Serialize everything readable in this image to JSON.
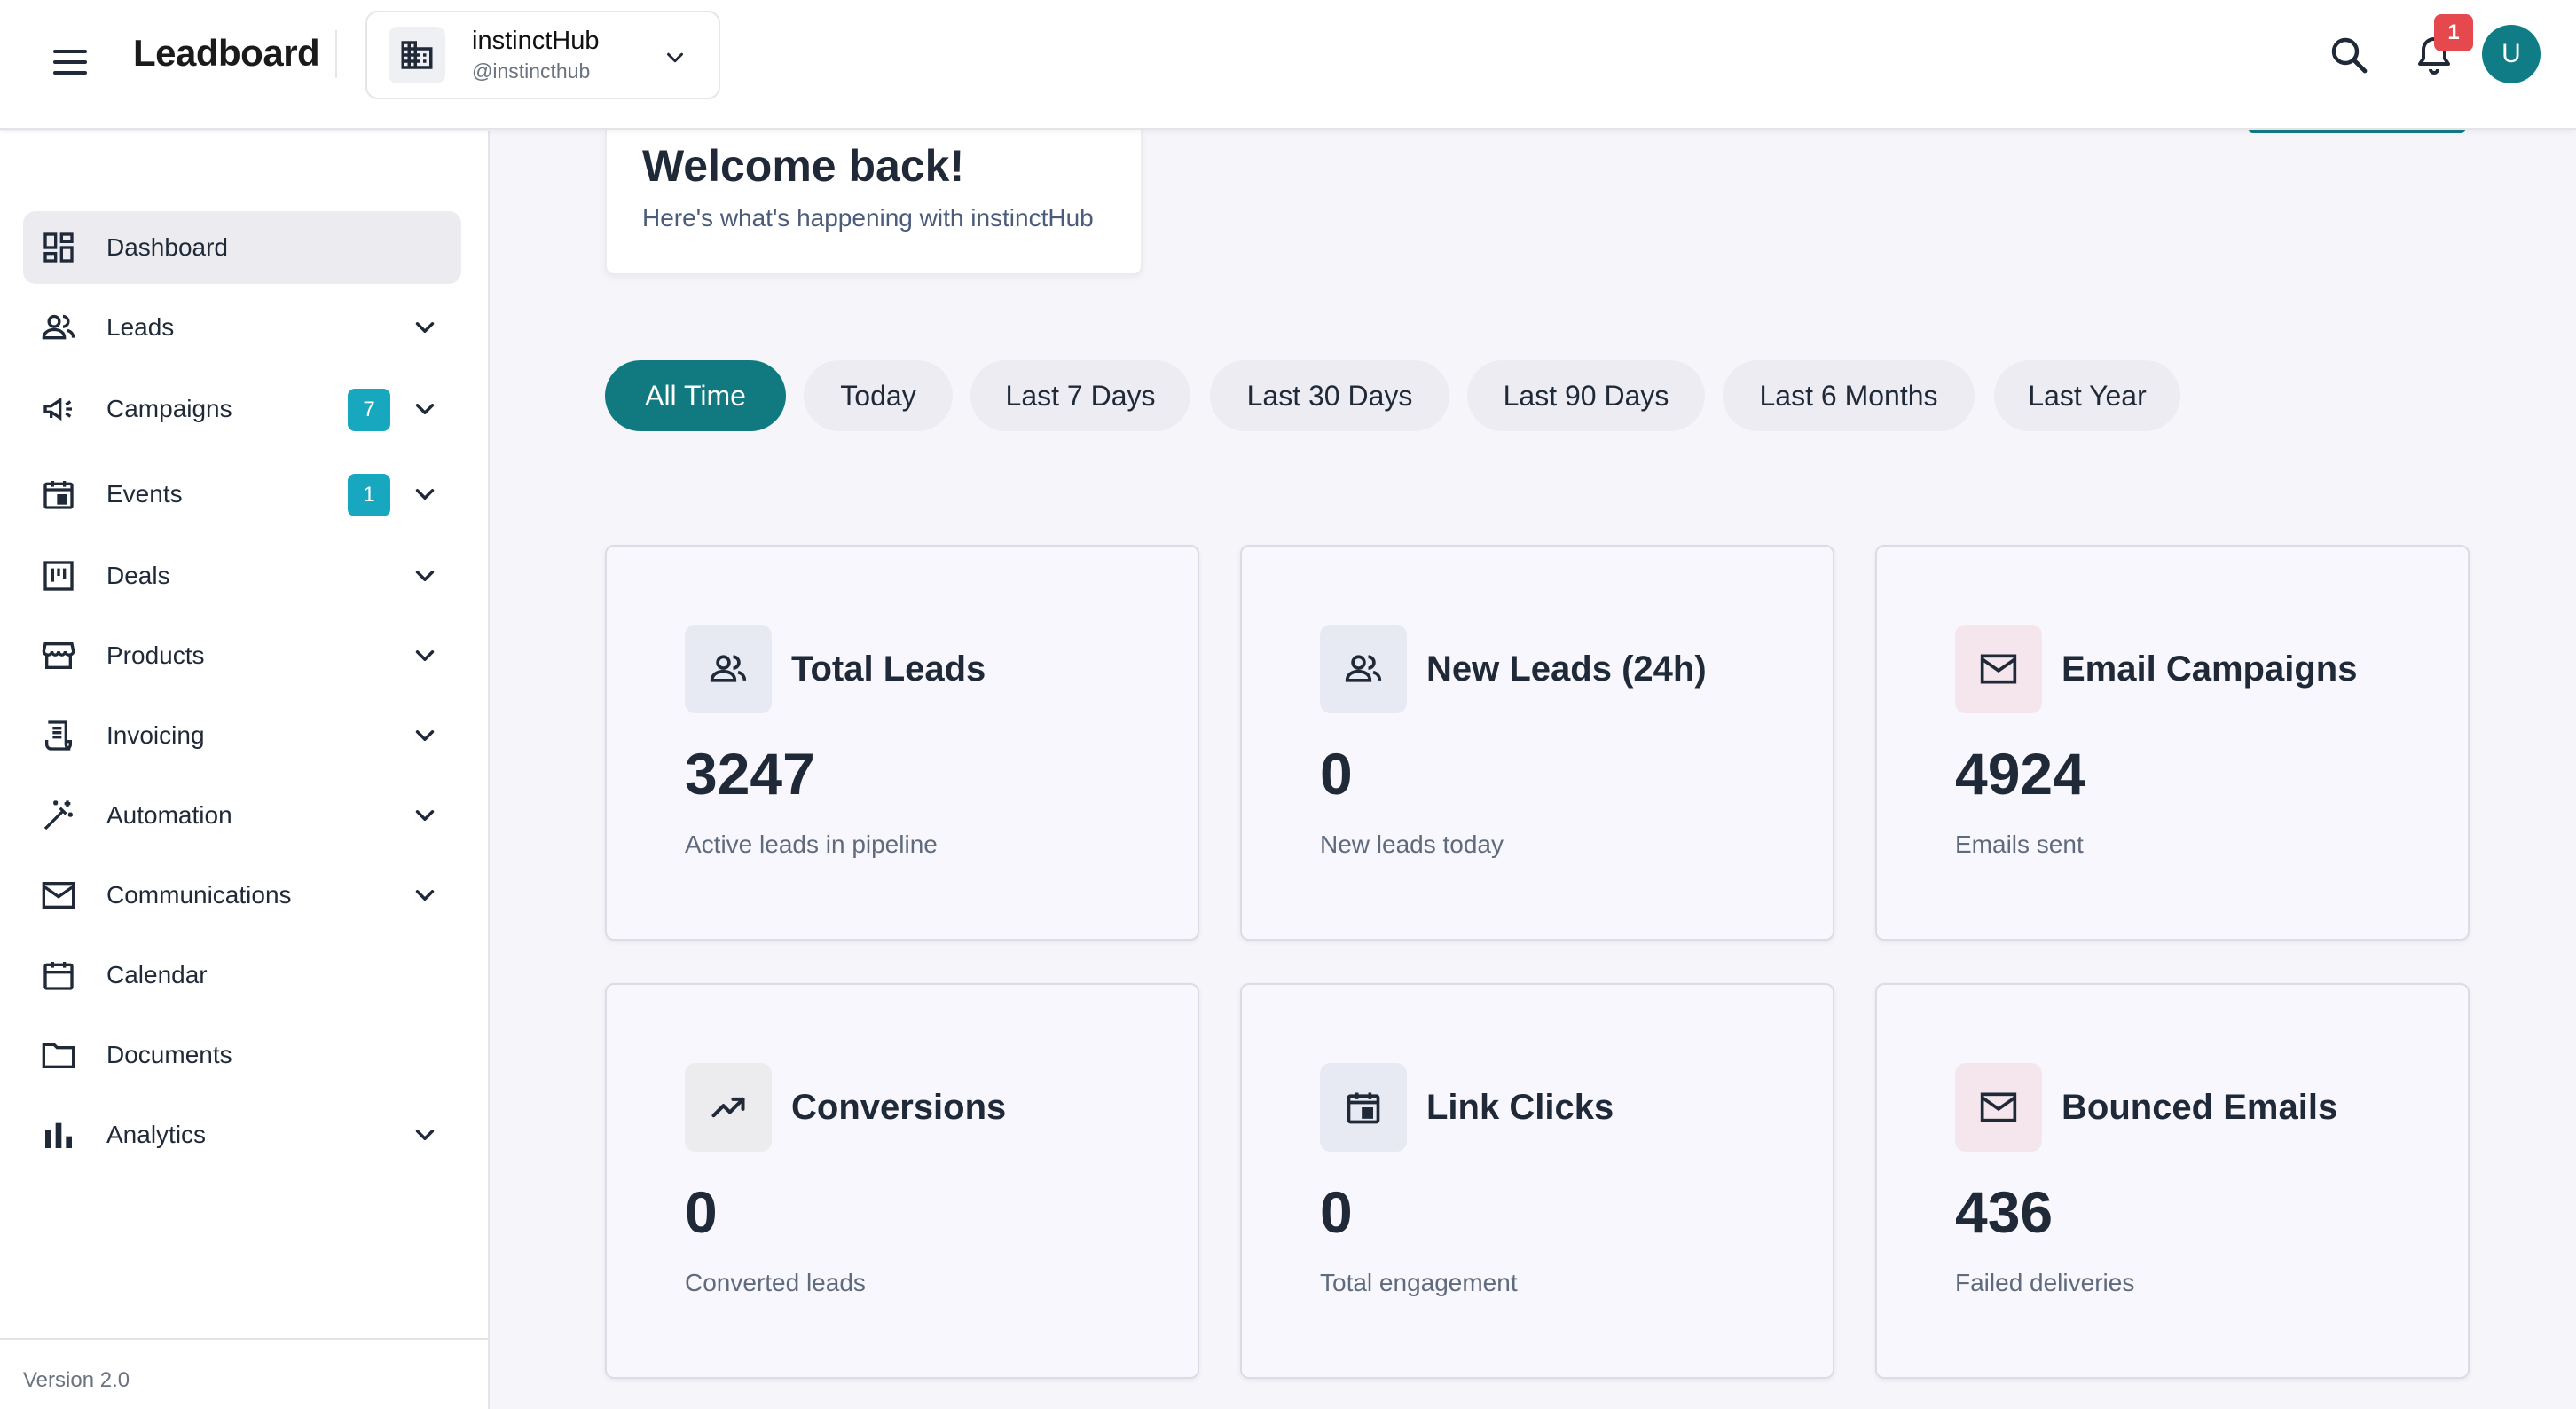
{
  "header": {
    "brand": "Leadboard",
    "org_name": "instinctHub",
    "org_handle": "@instincthub",
    "notification_count": "1",
    "avatar_initial": "U"
  },
  "sidebar": {
    "items": [
      {
        "label": "Dashboard",
        "icon": "dashboard-icon",
        "active": true
      },
      {
        "label": "Leads",
        "icon": "users-icon"
      },
      {
        "label": "Campaigns",
        "icon": "megaphone-icon",
        "badge": "7"
      },
      {
        "label": "Events",
        "icon": "event-icon",
        "badge": "1"
      },
      {
        "label": "Deals",
        "icon": "kanban-icon"
      },
      {
        "label": "Products",
        "icon": "store-icon"
      },
      {
        "label": "Invoicing",
        "icon": "receipt-icon"
      },
      {
        "label": "Automation",
        "icon": "magic-wand-icon"
      },
      {
        "label": "Communications",
        "icon": "mail-icon"
      },
      {
        "label": "Calendar",
        "icon": "calendar-icon"
      },
      {
        "label": "Documents",
        "icon": "folder-icon"
      },
      {
        "label": "Analytics",
        "icon": "bar-chart-icon"
      }
    ],
    "version": "Version 2.0"
  },
  "welcome": {
    "title": "Welcome back!",
    "subtitle": "Here's what's happening with instinctHub"
  },
  "filters": [
    "All Time",
    "Today",
    "Last 7 Days",
    "Last 30 Days",
    "Last 90 Days",
    "Last 6 Months",
    "Last Year"
  ],
  "active_filter": "All Time",
  "stats": [
    {
      "title": "Total Leads",
      "value": "3247",
      "subtitle": "Active leads in pipeline",
      "icon": "users-icon"
    },
    {
      "title": "New Leads (24h)",
      "value": "0",
      "subtitle": "New leads today",
      "icon": "users-icon"
    },
    {
      "title": "Email Campaigns",
      "value": "4924",
      "subtitle": "Emails sent",
      "icon": "mail-icon"
    },
    {
      "title": "Conversions",
      "value": "0",
      "subtitle": "Converted leads",
      "icon": "trending-up-icon"
    },
    {
      "title": "Link Clicks",
      "value": "0",
      "subtitle": "Total engagement",
      "icon": "calendar-icon"
    },
    {
      "title": "Bounced Emails",
      "value": "436",
      "subtitle": "Failed deliveries",
      "icon": "mail-icon"
    }
  ],
  "colors": {
    "accent": "#117a80",
    "badge": "#17a8c0",
    "notification": "#e5484d"
  }
}
